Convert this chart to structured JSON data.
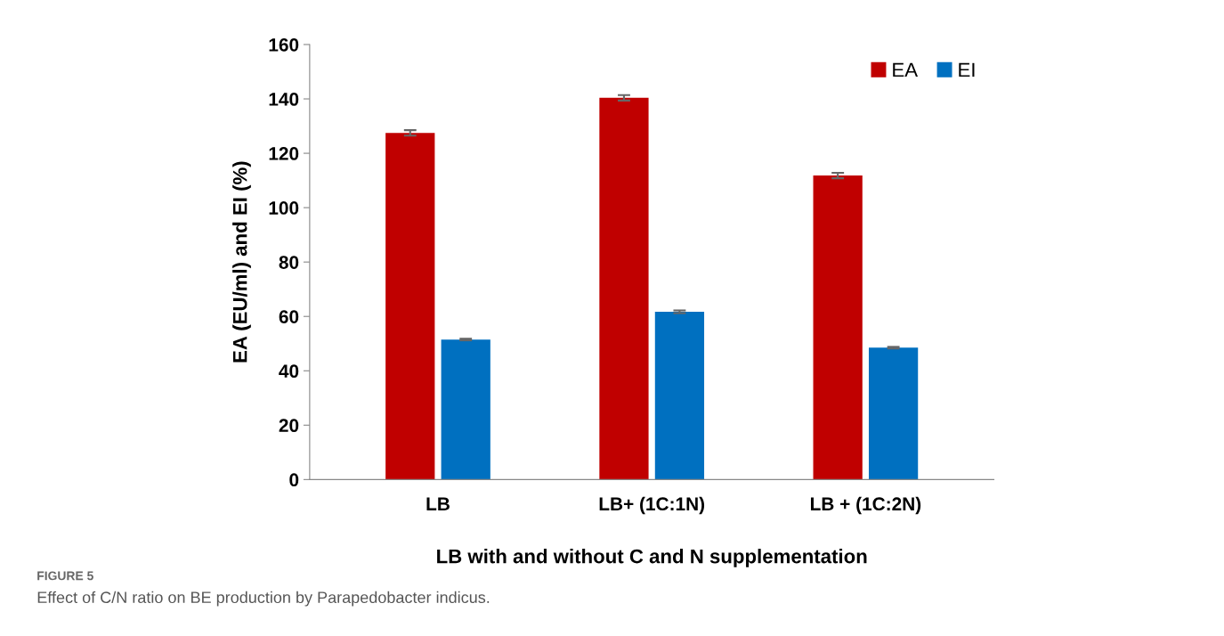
{
  "chart_data": {
    "type": "bar",
    "categories": [
      "LB",
      "LB+ (1C:1N)",
      "LB + (1C:2N)"
    ],
    "series": [
      {
        "name": "EA",
        "color": "#c00000",
        "values": [
          127.5,
          140.4,
          111.8
        ],
        "errors": [
          1,
          1,
          1
        ]
      },
      {
        "name": "EI",
        "color": "#0070c0",
        "values": [
          51.5,
          61.7,
          48.5
        ],
        "errors": [
          0.3,
          0.5,
          0.3
        ]
      }
    ],
    "xlabel": "LB with and without C and N supplementation",
    "ylabel": "EA (EU/ml) and EI (%)",
    "ylim": [
      0,
      160
    ],
    "yticks": [
      0,
      20,
      40,
      60,
      80,
      100,
      120,
      140,
      160
    ],
    "grid": false,
    "legend": "top right",
    "annotations": [
      "FIGURE 5",
      "Effect of C/N ratio on BE production by Parapedobacter indicus."
    ]
  }
}
